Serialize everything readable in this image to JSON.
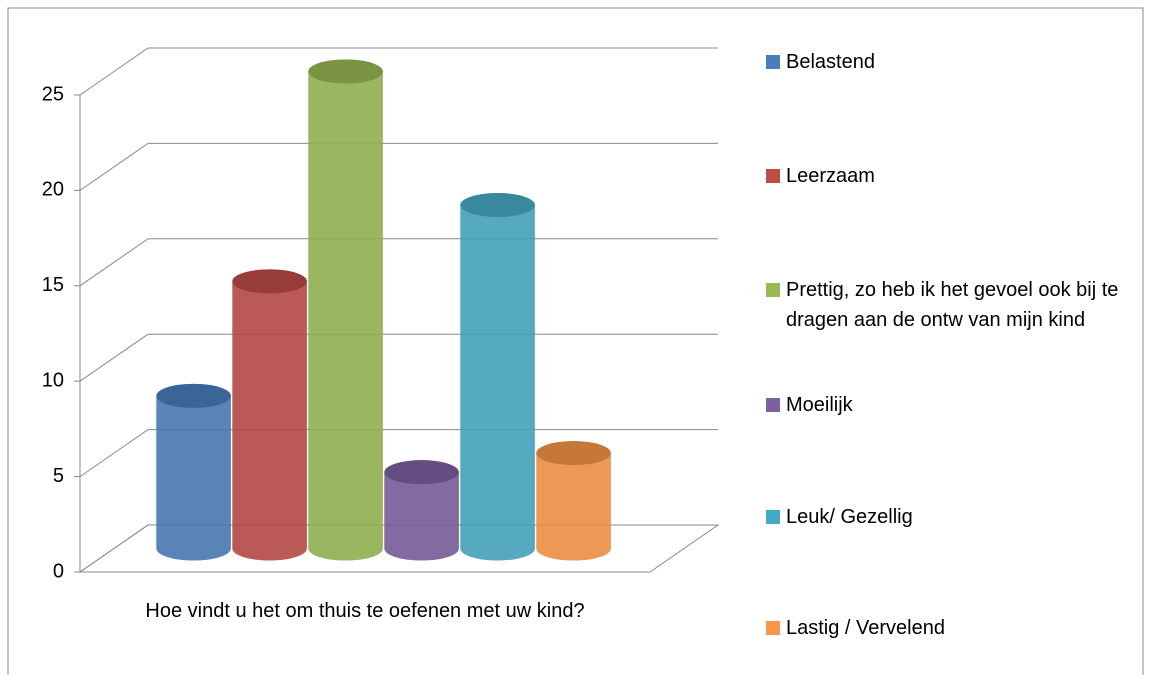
{
  "chart_data": {
    "type": "bar3d",
    "categories": [
      "Hoe vindt u het om thuis te oefenen met uw kind?"
    ],
    "series": [
      {
        "name": "Belastend",
        "color": "#4a7ebb",
        "values": [
          8
        ]
      },
      {
        "name": "Leerzaam",
        "color": "#be4b48",
        "values": [
          14
        ]
      },
      {
        "name": "Prettig, zo heb ik het gevoel ook bij te dragen aan de ontw van mijn kind",
        "color": "#98b954",
        "values": [
          25
        ]
      },
      {
        "name": "Moeilijk",
        "color": "#7d60a0",
        "values": [
          4
        ]
      },
      {
        "name": "Leuk/ Gezellig",
        "color": "#46aac5",
        "values": [
          18
        ]
      },
      {
        "name": "Lastig / Vervelend",
        "color": "#f79646",
        "values": [
          5
        ]
      }
    ],
    "ylim": [
      0,
      25
    ],
    "yticks": [
      0,
      5,
      10,
      15,
      20,
      25
    ],
    "grid": true,
    "legend": "right"
  }
}
